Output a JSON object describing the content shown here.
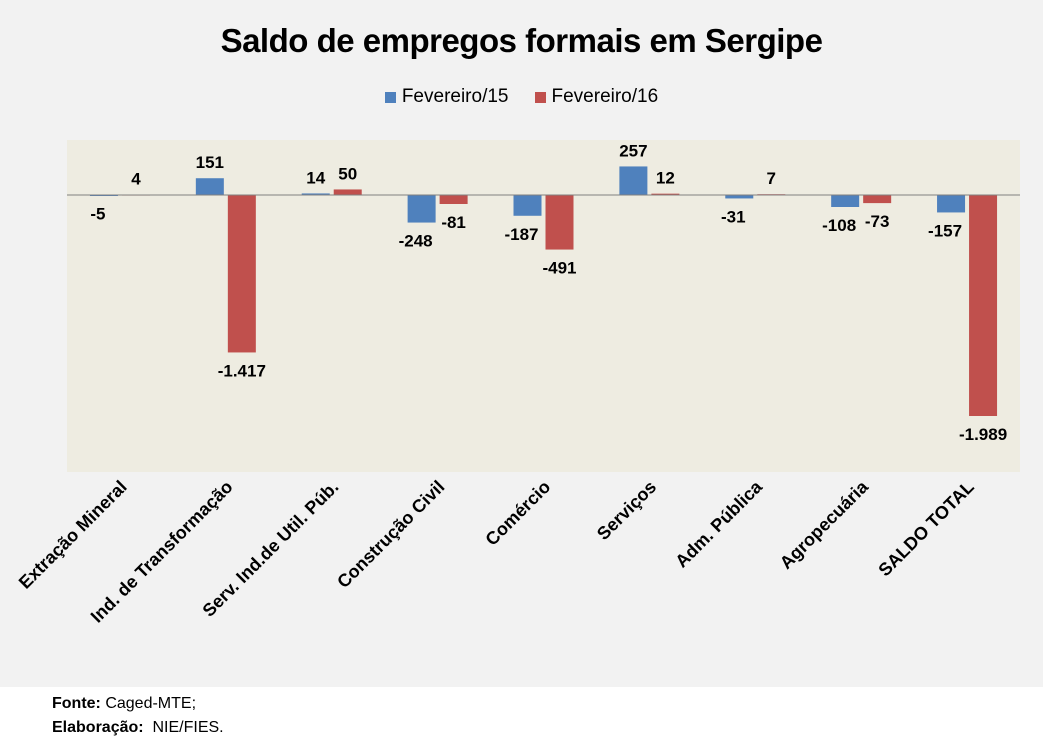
{
  "chart_data": {
    "type": "bar",
    "title": "Saldo de empregos formais em Sergipe",
    "xlabel": "",
    "ylabel": "",
    "ylim": [
      -2450,
      500
    ],
    "grid": false,
    "legend_position": "top",
    "categories": [
      "Extração Mineral",
      "Ind. de Transformação",
      "Serv. Ind.de Util. Púb.",
      "Construção Civil",
      "Comércio",
      "Serviços",
      "Adm. Pública",
      "Agropecuária",
      "SALDO TOTAL"
    ],
    "series": [
      {
        "name": "Fevereiro/15",
        "color": "#4f81bd",
        "values": [
          -5,
          151,
          14,
          -248,
          -187,
          257,
          -31,
          -108,
          -157
        ],
        "labels": [
          "-5",
          "151",
          "14",
          "-248",
          "-187",
          "257",
          "-31",
          "-108",
          "-157"
        ]
      },
      {
        "name": "Fevereiro/16",
        "color": "#c0504d",
        "values": [
          4,
          -1417,
          50,
          -81,
          -491,
          12,
          7,
          -73,
          -1989
        ],
        "labels": [
          "4",
          "-1.417",
          "50",
          "-81",
          "-491",
          "12",
          "7",
          "-73",
          "-1.989"
        ]
      }
    ]
  },
  "colors": {
    "plot_background": "#eeece1",
    "page_background": "#f2f2f2",
    "axis": "#808080"
  },
  "footer": {
    "source_label": "Fonte:",
    "source_value": " Caged-MTE;",
    "elaboration_label": "Elaboração:",
    "elaboration_value": "  NIE/FIES."
  }
}
